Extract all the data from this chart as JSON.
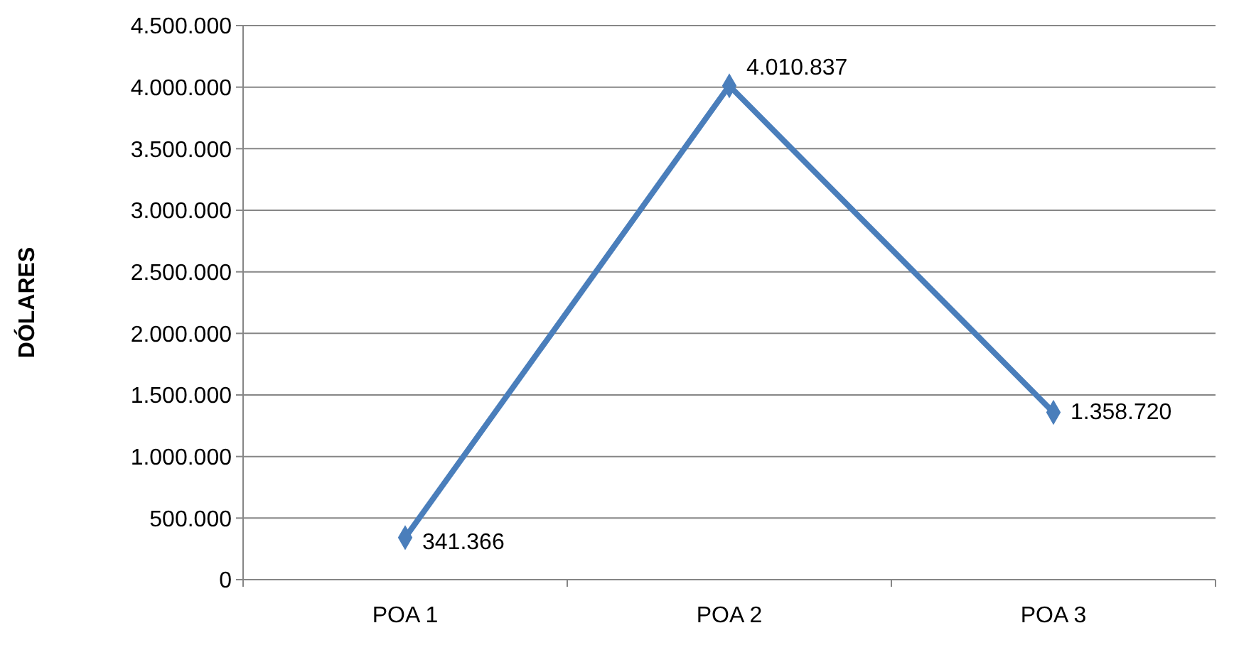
{
  "chart_data": {
    "type": "line",
    "ylabel": "DÓLARES",
    "categories": [
      "POA 1",
      "POA 2",
      "POA 3"
    ],
    "series": [
      {
        "color": "#4a7ebb",
        "values": [
          341366,
          4010837,
          1358720
        ],
        "value_labels": [
          "341.366",
          "4.010.837",
          "1.358.720"
        ]
      }
    ],
    "ylim": [
      0,
      4500000
    ],
    "yticks": [
      {
        "value": 0,
        "label": "0"
      },
      {
        "value": 500000,
        "label": "500.000"
      },
      {
        "value": 1000000,
        "label": "1.000.000"
      },
      {
        "value": 1500000,
        "label": "1.500.000"
      },
      {
        "value": 2000000,
        "label": "2.000.000"
      },
      {
        "value": 2500000,
        "label": "2.500.000"
      },
      {
        "value": 3000000,
        "label": "3.000.000"
      },
      {
        "value": 3500000,
        "label": "3.500.000"
      },
      {
        "value": 4000000,
        "label": "4.000.000"
      },
      {
        "value": 4500000,
        "label": "4.500.000"
      }
    ],
    "grid": "y",
    "marker": "diamond",
    "line_style": "solid"
  }
}
